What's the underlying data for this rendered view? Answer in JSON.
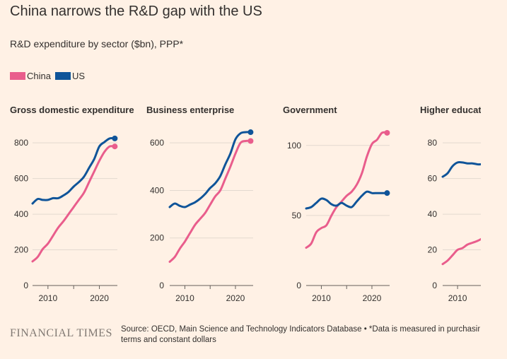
{
  "title": "China narrows the R&D gap with the US",
  "subtitle": "R&D expenditure by sector ($bn), PPP*",
  "colors": {
    "china": "#e95d8c",
    "us": "#0f5499",
    "background": "#fff1e5",
    "grid": "#e3d9cf",
    "axis": "#66605c",
    "text": "#33302e"
  },
  "legend": [
    {
      "label": "China",
      "color": "#e95d8c"
    },
    {
      "label": "US",
      "color": "#0f5499"
    }
  ],
  "chart_data": [
    {
      "type": "line",
      "title": "Gross domestic expenditure",
      "xlim": [
        2007,
        2023.5
      ],
      "ylim": [
        0,
        880
      ],
      "xticks": [
        2010,
        2020
      ],
      "yticks": [
        0,
        200,
        400,
        600,
        800
      ],
      "series": [
        {
          "name": "China",
          "x": [
            2007,
            2008,
            2009,
            2010,
            2011,
            2012,
            2013,
            2014,
            2015,
            2016,
            2017,
            2018,
            2019,
            2020,
            2021,
            2022,
            2023
          ],
          "values": [
            135,
            160,
            205,
            235,
            280,
            325,
            360,
            400,
            440,
            480,
            520,
            580,
            640,
            700,
            750,
            780,
            780
          ],
          "end_marker": true
        },
        {
          "name": "US",
          "x": [
            2007,
            2008,
            2009,
            2010,
            2011,
            2012,
            2013,
            2014,
            2015,
            2016,
            2017,
            2018,
            2019,
            2020,
            2021,
            2022,
            2023
          ],
          "values": [
            460,
            485,
            480,
            480,
            490,
            490,
            505,
            525,
            555,
            580,
            610,
            660,
            710,
            780,
            805,
            825,
            825
          ],
          "end_marker": true
        }
      ]
    },
    {
      "type": "line",
      "title": "Business enterprise",
      "xlim": [
        2007,
        2023.5
      ],
      "ylim": [
        0,
        660
      ],
      "xticks": [
        2010,
        2020
      ],
      "yticks": [
        0,
        200,
        400,
        600
      ],
      "series": [
        {
          "name": "China",
          "x": [
            2007,
            2008,
            2009,
            2010,
            2011,
            2012,
            2013,
            2014,
            2015,
            2016,
            2017,
            2018,
            2019,
            2020,
            2021,
            2022,
            2023
          ],
          "values": [
            100,
            120,
            155,
            185,
            220,
            255,
            280,
            305,
            340,
            375,
            400,
            450,
            500,
            555,
            600,
            608,
            608
          ],
          "end_marker": true
        },
        {
          "name": "US",
          "x": [
            2007,
            2008,
            2009,
            2010,
            2011,
            2012,
            2013,
            2014,
            2015,
            2016,
            2017,
            2018,
            2019,
            2020,
            2021,
            2022,
            2023
          ],
          "values": [
            330,
            345,
            335,
            330,
            340,
            350,
            365,
            385,
            410,
            430,
            460,
            510,
            555,
            615,
            640,
            645,
            645
          ],
          "end_marker": true
        }
      ]
    },
    {
      "type": "line",
      "title": "Government",
      "xlim": [
        2007,
        2023.5
      ],
      "ylim": [
        0,
        112
      ],
      "xticks": [
        2010,
        2020
      ],
      "yticks": [
        0,
        50,
        100
      ],
      "series": [
        {
          "name": "China",
          "x": [
            2007,
            2008,
            2009,
            2010,
            2011,
            2012,
            2013,
            2014,
            2015,
            2016,
            2017,
            2018,
            2019,
            2020,
            2021,
            2022,
            2023
          ],
          "values": [
            27,
            30,
            38,
            41,
            43,
            50,
            56,
            60,
            64,
            67,
            72,
            80,
            92,
            101,
            104,
            109,
            109
          ],
          "end_marker": true
        },
        {
          "name": "US",
          "x": [
            2007,
            2008,
            2009,
            2010,
            2011,
            2012,
            2013,
            2014,
            2015,
            2016,
            2017,
            2018,
            2019,
            2020,
            2021,
            2022,
            2023
          ],
          "values": [
            55,
            56,
            59,
            62,
            61,
            58,
            57,
            59,
            57,
            56,
            60,
            64,
            67,
            66,
            66,
            66,
            66
          ],
          "end_marker": true
        }
      ]
    },
    {
      "type": "line",
      "title": "Higher educati",
      "xlim": [
        2007,
        2023.5
      ],
      "ylim": [
        0,
        88
      ],
      "xticks": [
        2010,
        2020
      ],
      "yticks": [
        0,
        20,
        40,
        60,
        80
      ],
      "series": [
        {
          "name": "China",
          "x": [
            2007,
            2008,
            2009,
            2010,
            2011,
            2012,
            2013,
            2014,
            2015
          ],
          "values": [
            12,
            14,
            17,
            20,
            21,
            23,
            24,
            25,
            26.5
          ],
          "end_marker": false
        },
        {
          "name": "US",
          "x": [
            2007,
            2008,
            2009,
            2010,
            2011,
            2012,
            2013,
            2014,
            2015
          ],
          "values": [
            61,
            63,
            67,
            69,
            69,
            68.5,
            68.5,
            68,
            68
          ],
          "end_marker": false
        }
      ]
    }
  ],
  "footer": {
    "logo": "FINANCIAL TIMES",
    "source_line1": "Source: OECD, Main Science and Technology Indicators Database • *Data is measured in purchasing p",
    "source_line2": "terms and constant dollars"
  }
}
